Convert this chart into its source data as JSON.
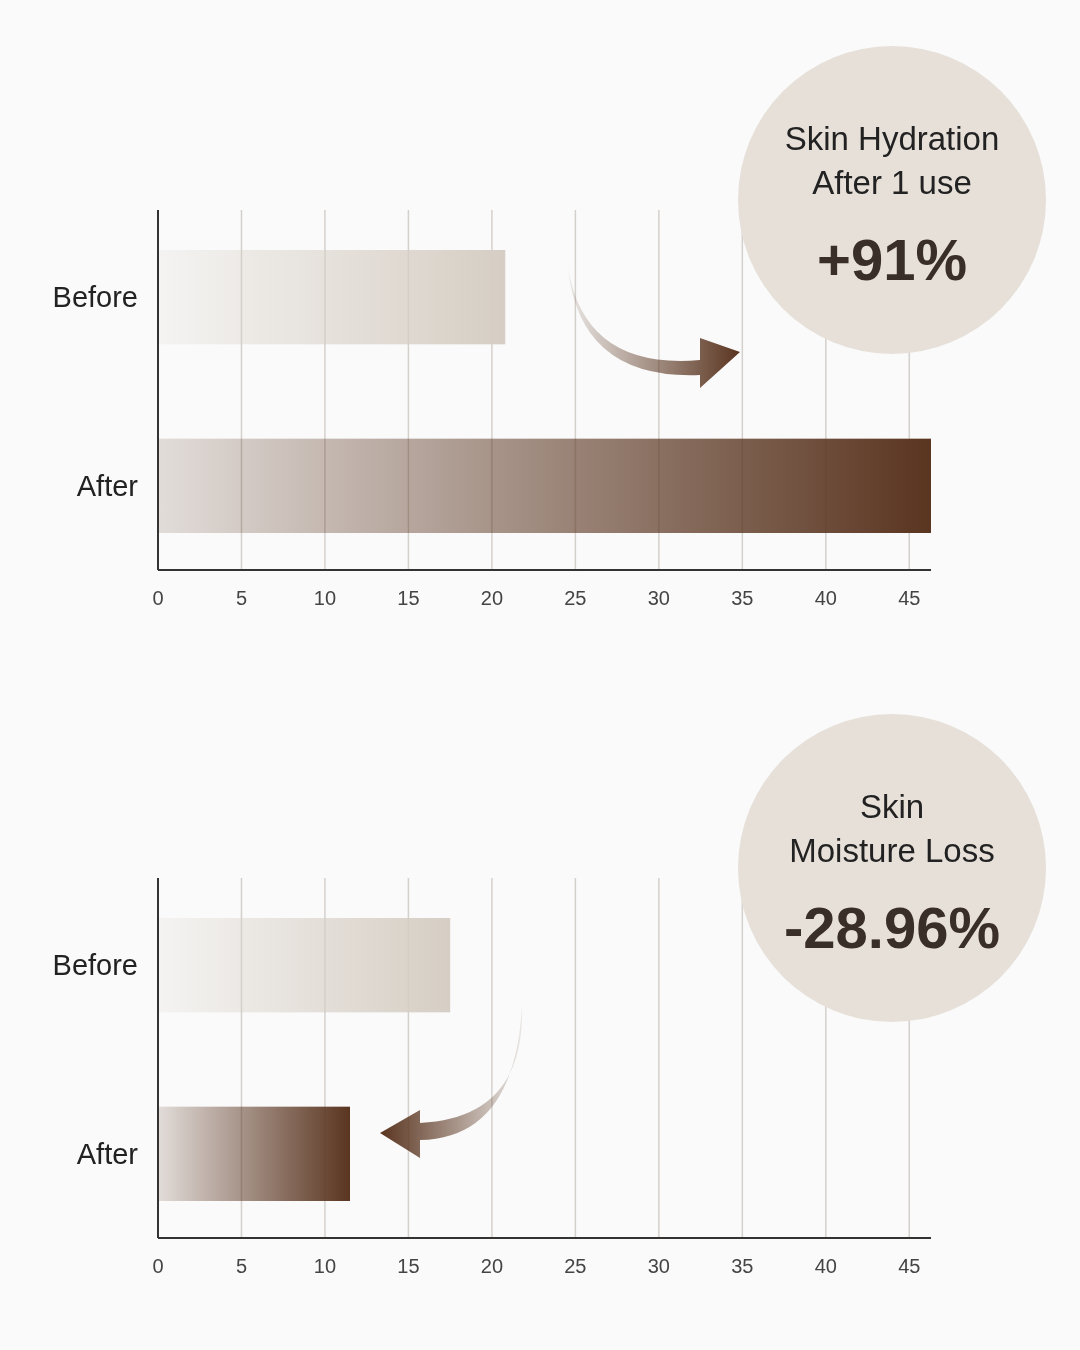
{
  "chart_data": [
    {
      "type": "bar",
      "orientation": "horizontal",
      "title": "Skin Hydration After 1 use",
      "annotations": [
        "+91%"
      ],
      "categories": [
        "Before",
        "After"
      ],
      "values": [
        20.8,
        46.3
      ],
      "colors": [
        "#d6cec4",
        "#5a3520"
      ],
      "xlim": [
        0,
        46.3
      ],
      "xticks": [
        0,
        5,
        10,
        15,
        20,
        25,
        30,
        35,
        40,
        45
      ],
      "grid": "x"
    },
    {
      "type": "bar",
      "orientation": "horizontal",
      "title": "Skin Moisture Loss",
      "annotations": [
        "-28.96%"
      ],
      "categories": [
        "Before",
        "After"
      ],
      "values": [
        17.5,
        11.5
      ],
      "colors": [
        "#d6cec4",
        "#5a3520"
      ],
      "xlim": [
        0,
        46.3
      ],
      "xticks": [
        0,
        5,
        10,
        15,
        20,
        25,
        30,
        35,
        40,
        45
      ],
      "grid": "x"
    }
  ]
}
